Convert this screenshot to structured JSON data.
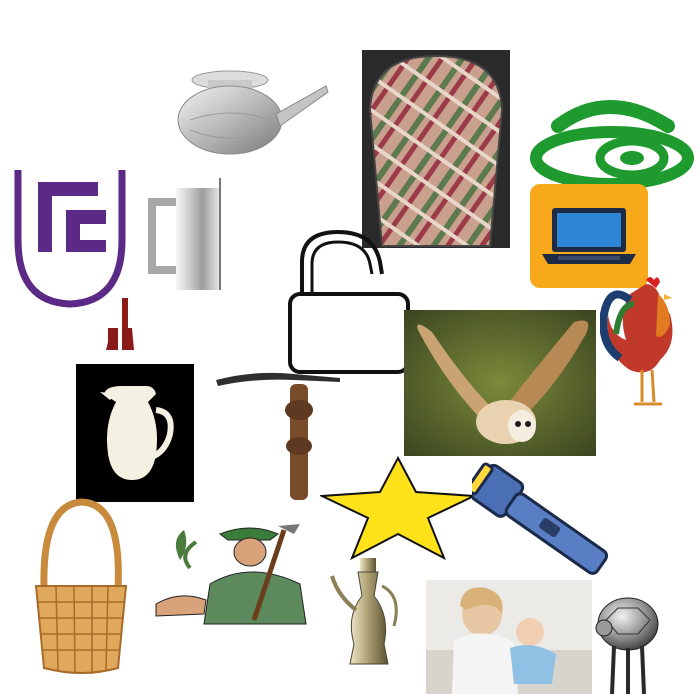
{
  "canvas": {
    "background": "#ffffff"
  },
  "items": [
    {
      "key": "metal-pot-with-spout",
      "icon": "lota-pot-icon"
    },
    {
      "key": "woven-textile-bag",
      "icon": "textile-bag-icon"
    },
    {
      "key": "green-open-access-logo",
      "icon": "open-access-icon",
      "color": "#1f9a2e"
    },
    {
      "key": "purple-pc-logo",
      "icon": "purple-logo-icon",
      "color": "#5b2a86"
    },
    {
      "key": "metal-mug",
      "icon": "metal-mug-icon"
    },
    {
      "key": "laptop-sticker",
      "icon": "laptop-icon",
      "color": "#f7a81b"
    },
    {
      "key": "open-padlock-outline",
      "icon": "padlock-open-icon"
    },
    {
      "key": "rooster",
      "icon": "rooster-icon"
    },
    {
      "key": "tiny-boots-figure",
      "icon": "boots-icon",
      "color": "#8b1a1a"
    },
    {
      "key": "white-jug",
      "icon": "jug-icon"
    },
    {
      "key": "pickaxe-handle",
      "icon": "pickaxe-icon"
    },
    {
      "key": "barn-owl-photo",
      "icon": "owl-icon"
    },
    {
      "key": "yellow-star",
      "icon": "star-icon",
      "color": "#ffe21a"
    },
    {
      "key": "flashlight",
      "icon": "flashlight-icon"
    },
    {
      "key": "wicker-basket",
      "icon": "basket-icon"
    },
    {
      "key": "farmer-with-hoe",
      "icon": "farmer-icon"
    },
    {
      "key": "ornate-metal-ewer",
      "icon": "ewer-icon"
    },
    {
      "key": "mother-and-baby-photo",
      "icon": "mother-baby-icon"
    },
    {
      "key": "silver-turtle-figurine",
      "icon": "turtle-icon"
    }
  ]
}
